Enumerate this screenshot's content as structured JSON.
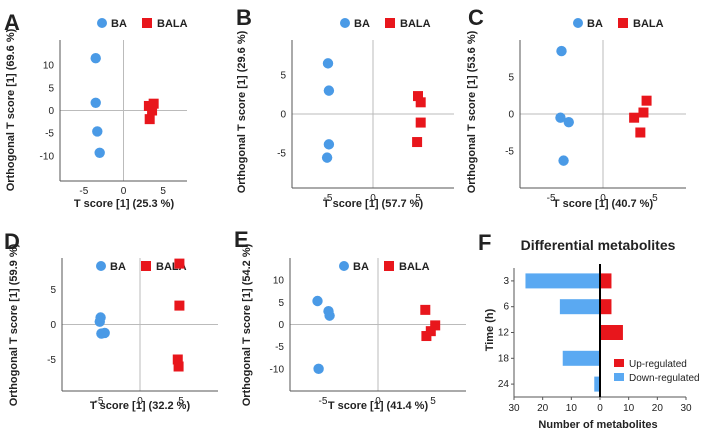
{
  "colors": {
    "BA": "#4a9ae6",
    "BALA": "#e8161c",
    "up": "#e8161c",
    "down": "#5aa9f2",
    "axis": "#555555",
    "zero": "#bbbbbb"
  },
  "chart_data": [
    {
      "type": "scatter",
      "letter": "A",
      "xlabel": "T score [1] (25.3 %)",
      "ylabel": "Orthogonal T score [1] (69.6 %)",
      "xlim": [
        -8,
        8
      ],
      "ylim": [
        -15.5,
        15.5
      ],
      "xticks": [
        -5,
        0,
        5
      ],
      "xtick_labels": [
        "-5",
        "0",
        "5"
      ],
      "yticks": [
        -10,
        -5,
        0,
        5,
        10
      ],
      "ytick_labels": [
        "-10",
        "-5",
        "0",
        "5",
        "10"
      ],
      "legend": [
        "BA",
        "BALA"
      ],
      "series": [
        {
          "name": "BA",
          "marker": "circle",
          "points": [
            [
              -3.5,
              11.5
            ],
            [
              -3.5,
              1.7
            ],
            [
              -3.3,
              -4.6
            ],
            [
              -3.0,
              -9.3
            ]
          ]
        },
        {
          "name": "BALA",
          "marker": "square",
          "points": [
            [
              3.8,
              1.5
            ],
            [
              3.2,
              1.0
            ],
            [
              3.6,
              0.0
            ],
            [
              3.3,
              -1.9
            ]
          ]
        }
      ]
    },
    {
      "type": "scatter",
      "letter": "B",
      "xlabel": "T score [1] (57.7 %)",
      "ylabel": "Orthogonal T score [1] (29.6 %)",
      "xlim": [
        -9,
        9
      ],
      "ylim": [
        -9.5,
        9.5
      ],
      "xticks": [
        -5,
        0,
        5
      ],
      "xtick_labels": [
        "-5",
        "0",
        "5"
      ],
      "yticks": [
        -5,
        0,
        5
      ],
      "ytick_labels": [
        "-5",
        "0",
        "5"
      ],
      "legend": [
        "BA",
        "BALA"
      ],
      "series": [
        {
          "name": "BA",
          "marker": "circle",
          "points": [
            [
              -5.0,
              6.5
            ],
            [
              -4.9,
              3.0
            ],
            [
              -4.9,
              -3.9
            ],
            [
              -5.1,
              -5.6
            ]
          ]
        },
        {
          "name": "BALA",
          "marker": "square",
          "points": [
            [
              5.0,
              2.3
            ],
            [
              5.3,
              1.5
            ],
            [
              5.3,
              -1.1
            ],
            [
              4.9,
              -3.6
            ]
          ]
        }
      ]
    },
    {
      "type": "scatter",
      "letter": "C",
      "xlabel": "T score [1] (40.7 %)",
      "ylabel": "Orthogonal T score [1] (53.6 %)",
      "xlim": [
        -8,
        8
      ],
      "ylim": [
        -10,
        10
      ],
      "xticks": [
        -5,
        0,
        5
      ],
      "xtick_labels": [
        "-5",
        "0",
        "5"
      ],
      "yticks": [
        -5,
        0,
        5
      ],
      "ytick_labels": [
        "-5",
        "0",
        "5"
      ],
      "legend": [
        "BA",
        "BALA"
      ],
      "series": [
        {
          "name": "BA",
          "marker": "circle",
          "points": [
            [
              -4.0,
              8.5
            ],
            [
              -4.1,
              -0.5
            ],
            [
              -3.3,
              -1.1
            ],
            [
              -3.8,
              -6.3
            ]
          ]
        },
        {
          "name": "BALA",
          "marker": "square",
          "points": [
            [
              4.2,
              1.8
            ],
            [
              3.9,
              0.2
            ],
            [
              3.0,
              -0.5
            ],
            [
              3.6,
              -2.5
            ]
          ]
        }
      ]
    },
    {
      "type": "scatter",
      "letter": "D",
      "xlabel": "T score [1] (32.2 %)",
      "ylabel": "Orthogonal T score [1] (59.9 %)",
      "xlim": [
        -9.5,
        9.5
      ],
      "ylim": [
        -9.5,
        9.5
      ],
      "xticks": [
        -5,
        0,
        5
      ],
      "xtick_labels": [
        "-5",
        "0",
        "5"
      ],
      "yticks": [
        -5,
        0,
        5
      ],
      "ytick_labels": [
        "-5",
        "0",
        "5"
      ],
      "legend": [
        "BA",
        "BALA"
      ],
      "series": [
        {
          "name": "BA",
          "marker": "circle",
          "points": [
            [
              -4.8,
              1.0
            ],
            [
              -4.9,
              0.4
            ],
            [
              -4.3,
              -1.2
            ],
            [
              -4.7,
              -1.3
            ]
          ]
        },
        {
          "name": "BALA",
          "marker": "square",
          "points": [
            [
              4.8,
              8.7
            ],
            [
              4.8,
              2.7
            ],
            [
              4.6,
              -5.0
            ],
            [
              4.7,
              -6.0
            ]
          ]
        }
      ]
    },
    {
      "type": "scatter",
      "letter": "E",
      "xlabel": "T score [1] (41.4 %)",
      "ylabel": "Orthogonal T score [1] (54.2 %)",
      "xlim": [
        -8,
        8
      ],
      "ylim": [
        -15,
        15
      ],
      "xticks": [
        -5,
        0,
        5
      ],
      "xtick_labels": [
        "-5",
        "0",
        "5"
      ],
      "yticks": [
        -10,
        -5,
        0,
        5,
        10
      ],
      "ytick_labels": [
        "-10",
        "-5",
        "0",
        "5",
        "10"
      ],
      "legend": [
        "BA",
        "BALA"
      ],
      "series": [
        {
          "name": "BA",
          "marker": "circle",
          "points": [
            [
              -5.5,
              5.3
            ],
            [
              -4.5,
              3.0
            ],
            [
              -4.4,
              2.0
            ],
            [
              -5.4,
              -10.0
            ]
          ]
        },
        {
          "name": "BALA",
          "marker": "square",
          "points": [
            [
              4.3,
              3.3
            ],
            [
              5.2,
              -0.2
            ],
            [
              4.8,
              -1.5
            ],
            [
              4.4,
              -2.6
            ]
          ]
        }
      ]
    },
    {
      "type": "bar",
      "orientation": "horizontal-diverging",
      "letter": "F",
      "title": "Differential metabolites",
      "xlabel": "Number of metabolites",
      "ylabel": "Time (h)",
      "xlim": [
        -30,
        30
      ],
      "xticks": [
        -30,
        -20,
        -10,
        0,
        10,
        20,
        30
      ],
      "xtick_labels": [
        "30",
        "20",
        "10",
        "0",
        "10",
        "20",
        "30"
      ],
      "categories": [
        "3",
        "6",
        "12",
        "18",
        "24"
      ],
      "series": [
        {
          "name": "Up-regulated",
          "values": [
            4,
            4,
            8,
            0,
            0
          ]
        },
        {
          "name": "Down-regulated",
          "values": [
            26,
            14,
            0,
            13,
            2
          ]
        }
      ],
      "legend": [
        "Up-regulated",
        "Down-regulated"
      ]
    }
  ]
}
